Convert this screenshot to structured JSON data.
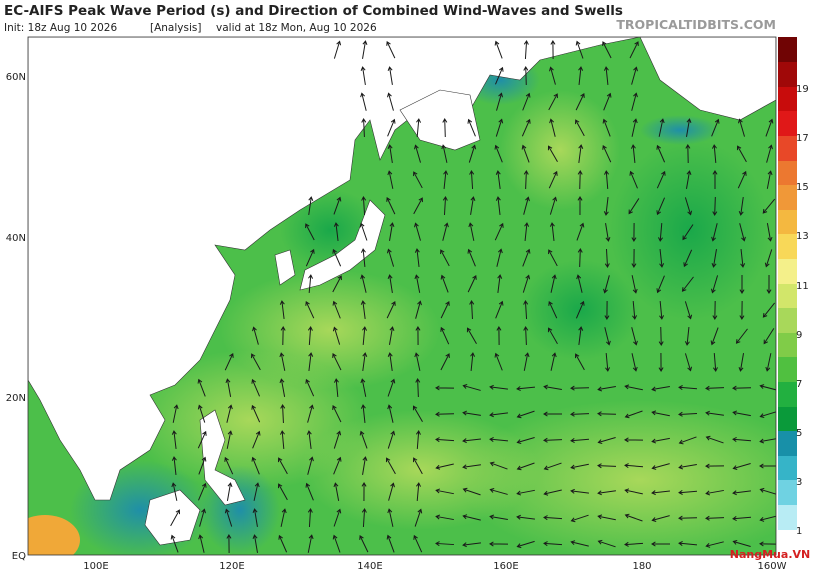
{
  "header": {
    "title": "EC-AIFS Peak Wave Period (s) and Direction of Combined Wind-Waves and Swells",
    "init": "Init: 18z Aug 10 2026",
    "analysis": "[Analysis]",
    "valid": "valid at 18z Mon, Aug 10 2026",
    "site": "TROPICALTIDBITS.COM"
  },
  "map": {
    "lat_labels": [
      "60N",
      "40N",
      "20N",
      "EQ"
    ],
    "lon_labels": [
      "100E",
      "120E",
      "140E",
      "160E",
      "180",
      "160W"
    ]
  },
  "colorbar": {
    "labels": [
      "1",
      "3",
      "5",
      "7",
      "9",
      "11",
      "13",
      "15",
      "17",
      "19"
    ]
  },
  "watermark": "NangMua.VN"
}
